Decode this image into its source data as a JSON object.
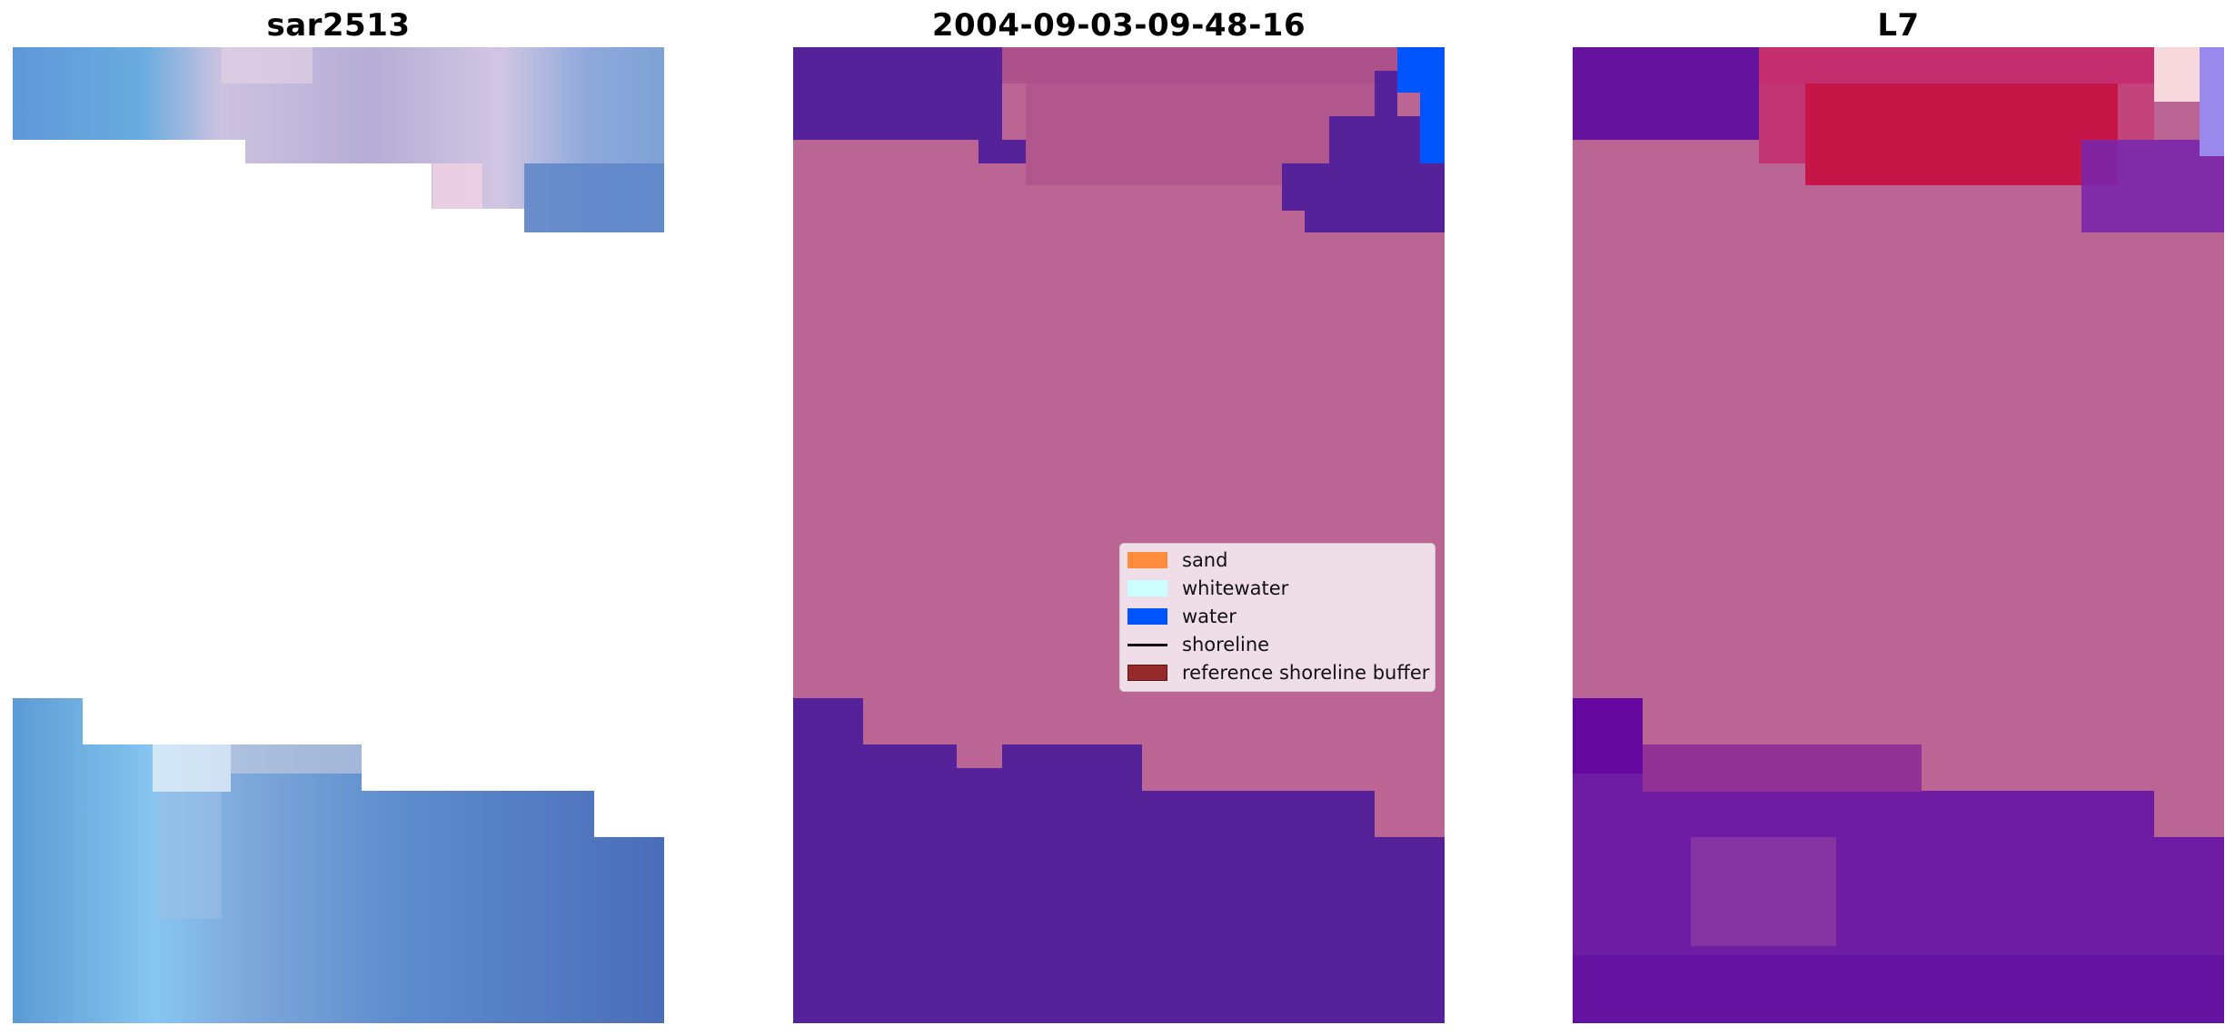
{
  "panels": [
    {
      "title": "sar2513"
    },
    {
      "title": "2004-09-03-09-48-16"
    },
    {
      "title": "L7"
    }
  ],
  "legend": {
    "items": [
      {
        "label": "sand",
        "color": "#ff8b3d",
        "kind": "patch"
      },
      {
        "label": "whitewater",
        "color": "#ccffff",
        "kind": "patch"
      },
      {
        "label": "water",
        "color": "#0055ff",
        "kind": "patch"
      },
      {
        "label": "shoreline",
        "color": "#000000",
        "kind": "line"
      },
      {
        "label": "reference shoreline buffer",
        "color": "#962a2a",
        "kind": "patch"
      }
    ]
  },
  "colors": {
    "buffer_overlay": "#bb6595",
    "sea_purple": "#55229a",
    "water_blue": "#0055ff"
  }
}
